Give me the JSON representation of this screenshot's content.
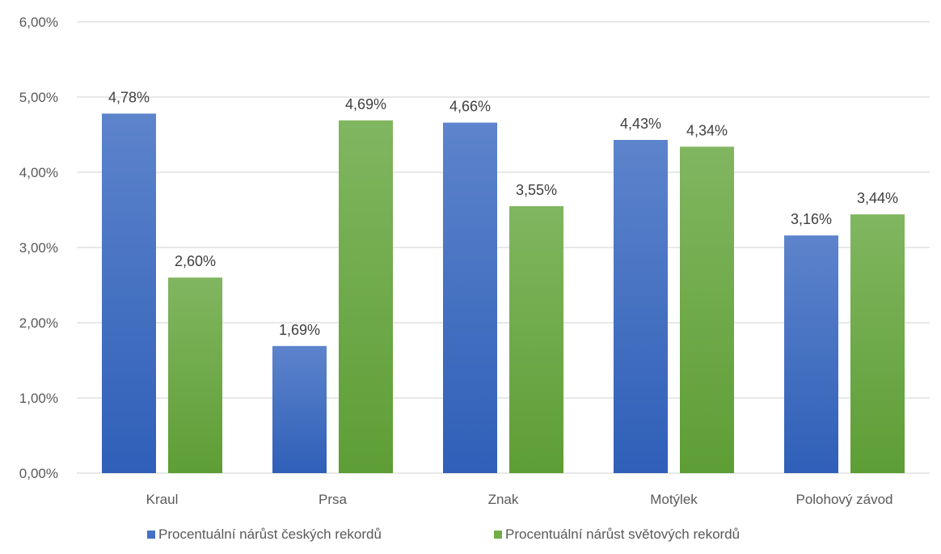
{
  "chart_data": {
    "type": "bar",
    "title": "",
    "xlabel": "",
    "ylabel": "",
    "ylim": [
      0,
      0.06
    ],
    "yticks": [
      "0,00%",
      "1,00%",
      "2,00%",
      "3,00%",
      "4,00%",
      "5,00%",
      "6,00%"
    ],
    "grid": true,
    "legend_position": "bottom",
    "categories": [
      "Kraul",
      "Prsa",
      "Znak",
      "Motýlek",
      "Polohový závod"
    ],
    "series": [
      {
        "name": "Procentuální nárůst českých rekordů",
        "color": "#4472C4",
        "values": [
          0.0478,
          0.0169,
          0.0466,
          0.0443,
          0.0316
        ],
        "labels": [
          "4,78%",
          "1,69%",
          "4,66%",
          "4,43%",
          "3,16%"
        ]
      },
      {
        "name": "Procentuální nárůst světových rekordů",
        "color": "#70AD47",
        "values": [
          0.026,
          0.0469,
          0.0355,
          0.0434,
          0.0344
        ],
        "labels": [
          "2,60%",
          "4,69%",
          "3,55%",
          "4,34%",
          "3,44%"
        ]
      }
    ]
  }
}
